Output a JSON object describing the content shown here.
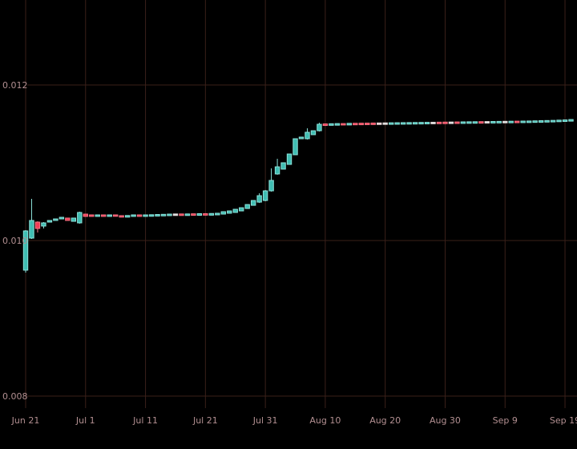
{
  "chart": {
    "background": "#000000",
    "grid_color": "#3a2019",
    "axis_label_color": "#b28f91",
    "up_fill": "#3fbdb2",
    "up_border": "#8ce2da",
    "down_fill": "#f23c55",
    "down_border": "#f47484",
    "pale_up_fill": "#cfe5e2",
    "pale_down_fill": "#e8cdd1",
    "pale_border": "#e8d9da"
  },
  "chart_data": {
    "type": "candlestick",
    "title": "",
    "xlabel": "",
    "ylabel": "",
    "grid": true,
    "legend": false,
    "y_ticks": [
      0.012,
      0.01,
      0.008
    ],
    "y_tick_labels": [
      "0.012",
      "0.010",
      "0.008"
    ],
    "ylim": [
      0.00791,
      0.0131
    ],
    "x_tick_labels": [
      "Jun 21",
      "Jul 1",
      "Jul 11",
      "Jul 21",
      "Jul 31",
      "Aug 10",
      "Aug 20",
      "Aug 30",
      "Sep 9",
      "Sep 19"
    ],
    "x_tick_dates": [
      "Jun 21",
      "Jul 1",
      "Jul 11",
      "Jul 21",
      "Jul 31",
      "Aug 10",
      "Aug 20",
      "Aug 30",
      "Sep 9",
      "Sep 19"
    ],
    "candles": [
      {
        "date": "Jun 21",
        "o": 0.009619,
        "h": 0.010134,
        "l": 0.009588,
        "c": 0.010124
      },
      {
        "date": "Jun 22",
        "o": 0.010031,
        "h": 0.010536,
        "l": 0.010021,
        "c": 0.010258
      },
      {
        "date": "Jun 23",
        "o": 0.010237,
        "h": 0.010247,
        "l": 0.010103,
        "c": 0.010155
      },
      {
        "date": "Jun 24",
        "o": 0.010186,
        "h": 0.010237,
        "l": 0.010155,
        "c": 0.010227
      },
      {
        "date": "Jun 25",
        "o": 0.010237,
        "c": 0.010258
      },
      {
        "date": "Jun 26",
        "o": 0.010258,
        "c": 0.010278
      },
      {
        "date": "Jun 27",
        "o": 0.010278,
        "c": 0.010299
      },
      {
        "date": "Jun 28",
        "o": 0.010289,
        "c": 0.010258
      },
      {
        "date": "Jun 29",
        "o": 0.010247,
        "c": 0.010289
      },
      {
        "date": "Jun 30",
        "o": 0.010227,
        "h": 0.010371,
        "l": 0.010217,
        "c": 0.010361
      },
      {
        "date": "Jul 1",
        "o": 0.01034,
        "c": 0.01031
      },
      {
        "date": "Jul 2",
        "o": 0.01033,
        "c": 0.01031
      },
      {
        "date": "Jul 3",
        "o": 0.01031,
        "c": 0.01033
      },
      {
        "date": "Jul 4",
        "o": 0.01033,
        "c": 0.01031
      },
      {
        "date": "Jul 5",
        "o": 0.01031,
        "c": 0.01033
      },
      {
        "date": "Jul 6",
        "o": 0.01033,
        "c": 0.010312
      },
      {
        "date": "Jul 7",
        "o": 0.01032,
        "c": 0.010301
      },
      {
        "date": "Jul 8",
        "o": 0.010301,
        "c": 0.010322
      },
      {
        "date": "Jul 9",
        "o": 0.01031,
        "c": 0.01033
      },
      {
        "date": "Jul 10",
        "o": 0.01033,
        "c": 0.01031
      },
      {
        "date": "Jul 11",
        "o": 0.01031,
        "c": 0.01033
      },
      {
        "date": "Jul 12",
        "o": 0.010312,
        "c": 0.010332
      },
      {
        "date": "Jul 13",
        "o": 0.010315,
        "c": 0.010335
      },
      {
        "date": "Jul 14",
        "o": 0.010317,
        "c": 0.010337
      },
      {
        "date": "Jul 15",
        "o": 0.01032,
        "c": 0.01034
      },
      {
        "date": "Jul 16",
        "o": 0.010322,
        "c": 0.010342,
        "tone": "pale"
      },
      {
        "date": "Jul 17",
        "o": 0.010342,
        "c": 0.010322
      },
      {
        "date": "Jul 18",
        "o": 0.010322,
        "c": 0.010342
      },
      {
        "date": "Jul 19",
        "o": 0.010344,
        "c": 0.010324
      },
      {
        "date": "Jul 20",
        "o": 0.010324,
        "c": 0.010346
      },
      {
        "date": "Jul 21",
        "o": 0.010346,
        "c": 0.010326
      },
      {
        "date": "Jul 22",
        "o": 0.010326,
        "c": 0.010348
      },
      {
        "date": "Jul 23",
        "o": 0.01033,
        "c": 0.010351
      },
      {
        "date": "Jul 24",
        "o": 0.01034,
        "c": 0.010371
      },
      {
        "date": "Jul 25",
        "o": 0.010351,
        "c": 0.010381
      },
      {
        "date": "Jul 26",
        "o": 0.010361,
        "c": 0.010402
      },
      {
        "date": "Jul 27",
        "o": 0.010381,
        "c": 0.010422
      },
      {
        "date": "Jul 28",
        "o": 0.010412,
        "c": 0.010463
      },
      {
        "date": "Jul 29",
        "o": 0.010453,
        "c": 0.010515
      },
      {
        "date": "Jul 30",
        "o": 0.010494,
        "h": 0.010608,
        "l": 0.010484,
        "c": 0.010577
      },
      {
        "date": "Jul 31",
        "o": 0.010515,
        "h": 0.01065,
        "l": 0.010505,
        "c": 0.010639
      },
      {
        "date": "Aug 1",
        "o": 0.010639,
        "h": 0.010928,
        "l": 0.010629,
        "c": 0.010773
      },
      {
        "date": "Aug 2",
        "o": 0.010856,
        "h": 0.011051,
        "l": 0.010846,
        "c": 0.010948
      },
      {
        "date": "Aug 3",
        "o": 0.010918,
        "c": 0.011
      },
      {
        "date": "Aug 4",
        "o": 0.010979,
        "c": 0.011113
      },
      {
        "date": "Aug 5",
        "o": 0.011103,
        "c": 0.011309
      },
      {
        "date": "Aug 6",
        "o": 0.011309,
        "c": 0.01133
      },
      {
        "date": "Aug 7",
        "o": 0.011309,
        "h": 0.011443,
        "l": 0.011299,
        "c": 0.011392
      },
      {
        "date": "Aug 8",
        "o": 0.011361,
        "c": 0.011412
      },
      {
        "date": "Aug 9",
        "o": 0.011412,
        "h": 0.011515,
        "l": 0.011402,
        "c": 0.011495
      },
      {
        "date": "Aug 10",
        "o": 0.0115,
        "c": 0.011479
      },
      {
        "date": "Aug 11",
        "o": 0.011481,
        "c": 0.011502
      },
      {
        "date": "Aug 12",
        "o": 0.011483,
        "c": 0.011504
      },
      {
        "date": "Aug 13",
        "o": 0.011504,
        "c": 0.011486
      },
      {
        "date": "Aug 14",
        "o": 0.011486,
        "c": 0.011507
      },
      {
        "date": "Aug 15",
        "o": 0.011508,
        "c": 0.011488
      },
      {
        "date": "Aug 16",
        "o": 0.011509,
        "c": 0.011489
      },
      {
        "date": "Aug 17",
        "o": 0.01151,
        "c": 0.01149
      },
      {
        "date": "Aug 18",
        "o": 0.011511,
        "c": 0.011491
      },
      {
        "date": "Aug 19",
        "o": 0.011512,
        "c": 0.011492,
        "tone": "pale"
      },
      {
        "date": "Aug 20",
        "o": 0.011493,
        "c": 0.011513,
        "tone": "pale"
      },
      {
        "date": "Aug 21",
        "o": 0.011494,
        "c": 0.011514
      },
      {
        "date": "Aug 22",
        "o": 0.011495,
        "c": 0.011515
      },
      {
        "date": "Aug 23",
        "o": 0.011496,
        "c": 0.011516
      },
      {
        "date": "Aug 24",
        "o": 0.011497,
        "c": 0.011517
      },
      {
        "date": "Aug 25",
        "o": 0.011498,
        "c": 0.011518
      },
      {
        "date": "Aug 26",
        "o": 0.011499,
        "c": 0.011519
      },
      {
        "date": "Aug 27",
        "o": 0.0115,
        "c": 0.01152
      },
      {
        "date": "Aug 28",
        "o": 0.011501,
        "c": 0.011521,
        "tone": "pale"
      },
      {
        "date": "Aug 29",
        "o": 0.011522,
        "c": 0.011502
      },
      {
        "date": "Aug 30",
        "o": 0.011523,
        "c": 0.011503
      },
      {
        "date": "Aug 31",
        "o": 0.011504,
        "c": 0.011524,
        "tone": "pale"
      },
      {
        "date": "Sep 1",
        "o": 0.011525,
        "c": 0.011505
      },
      {
        "date": "Sep 2",
        "o": 0.011506,
        "c": 0.011526
      },
      {
        "date": "Sep 3",
        "o": 0.011507,
        "c": 0.011527
      },
      {
        "date": "Sep 4",
        "o": 0.011508,
        "c": 0.011528
      },
      {
        "date": "Sep 5",
        "o": 0.011529,
        "c": 0.011509
      },
      {
        "date": "Sep 6",
        "o": 0.01151,
        "c": 0.01153,
        "tone": "pale"
      },
      {
        "date": "Sep 7",
        "o": 0.011511,
        "c": 0.011531
      },
      {
        "date": "Sep 8",
        "o": 0.011512,
        "c": 0.011532
      },
      {
        "date": "Sep 9",
        "o": 0.011513,
        "c": 0.011533,
        "tone": "pale"
      },
      {
        "date": "Sep 10",
        "o": 0.011514,
        "c": 0.011534
      },
      {
        "date": "Sep 11",
        "o": 0.011535,
        "c": 0.011515
      },
      {
        "date": "Sep 12",
        "o": 0.011516,
        "c": 0.011536
      },
      {
        "date": "Sep 13",
        "o": 0.011517,
        "c": 0.011537
      },
      {
        "date": "Sep 14",
        "o": 0.011519,
        "c": 0.011539
      },
      {
        "date": "Sep 15",
        "o": 0.011521,
        "c": 0.011541
      },
      {
        "date": "Sep 16",
        "o": 0.011523,
        "c": 0.011543
      },
      {
        "date": "Sep 17",
        "o": 0.011525,
        "c": 0.011545
      },
      {
        "date": "Sep 18",
        "o": 0.011528,
        "c": 0.011548
      },
      {
        "date": "Sep 19",
        "o": 0.011531,
        "c": 0.011551
      },
      {
        "date": "Sep 20",
        "o": 0.011535,
        "c": 0.011556
      }
    ]
  }
}
